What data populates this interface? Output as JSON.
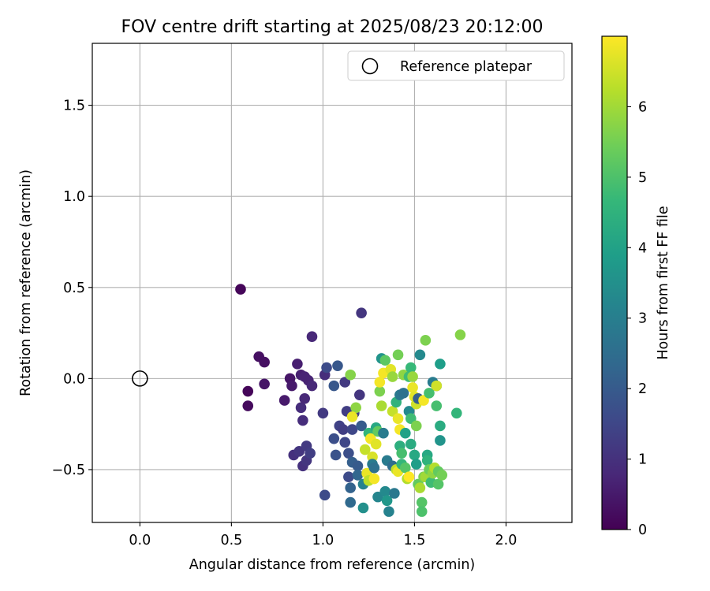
{
  "chart_data": {
    "type": "scatter",
    "title": "FOV centre drift starting at 2025/08/23 20:12:00",
    "xlabel": "Angular distance from reference (arcmin)",
    "ylabel": "Rotation from reference (arcmin)",
    "xlim": [
      -0.26,
      2.36
    ],
    "ylim": [
      -0.79,
      1.84
    ],
    "xticks": [
      0.0,
      0.5,
      1.0,
      1.5,
      2.0
    ],
    "xtick_labels": [
      "0.0",
      "0.5",
      "1.0",
      "1.5",
      "2.0"
    ],
    "yticks": [
      -0.5,
      0.0,
      0.5,
      1.0,
      1.5
    ],
    "ytick_labels": [
      "−0.5",
      "0.0",
      "0.5",
      "1.0",
      "1.5"
    ],
    "grid": true,
    "legend": {
      "placement": "top-right",
      "label": "Reference platepar",
      "marker": "open-circle"
    },
    "reference_point": {
      "x": 0.0,
      "y": 0.0
    },
    "colorbar": {
      "label": "Hours from first FF file",
      "range": [
        0,
        7
      ],
      "ticks": [
        0,
        1,
        2,
        3,
        4,
        5,
        6
      ],
      "tick_labels": [
        "0",
        "1",
        "2",
        "3",
        "4",
        "5",
        "6"
      ],
      "colormap": "viridis"
    },
    "points": [
      {
        "x": 0.55,
        "y": 0.49,
        "h": 0.1
      },
      {
        "x": 0.59,
        "y": -0.07,
        "h": 0.1
      },
      {
        "x": 0.59,
        "y": -0.15,
        "h": 0.2
      },
      {
        "x": 0.65,
        "y": 0.12,
        "h": 0.3
      },
      {
        "x": 0.68,
        "y": 0.09,
        "h": 0.3
      },
      {
        "x": 0.68,
        "y": -0.03,
        "h": 0.4
      },
      {
        "x": 0.79,
        "y": -0.12,
        "h": 0.5
      },
      {
        "x": 0.82,
        "y": 0.0,
        "h": 0.4
      },
      {
        "x": 0.83,
        "y": -0.04,
        "h": 0.5
      },
      {
        "x": 0.86,
        "y": 0.08,
        "h": 0.6
      },
      {
        "x": 0.88,
        "y": 0.02,
        "h": 0.6
      },
      {
        "x": 0.9,
        "y": 0.01,
        "h": 0.7
      },
      {
        "x": 0.92,
        "y": -0.01,
        "h": 0.7
      },
      {
        "x": 0.94,
        "y": -0.04,
        "h": 0.8
      },
      {
        "x": 0.94,
        "y": 0.23,
        "h": 0.8
      },
      {
        "x": 0.88,
        "y": -0.16,
        "h": 0.9
      },
      {
        "x": 0.9,
        "y": -0.11,
        "h": 0.8
      },
      {
        "x": 0.89,
        "y": -0.23,
        "h": 0.9
      },
      {
        "x": 0.84,
        "y": -0.42,
        "h": 1.0
      },
      {
        "x": 0.87,
        "y": -0.4,
        "h": 1.1
      },
      {
        "x": 0.89,
        "y": -0.48,
        "h": 1.0
      },
      {
        "x": 0.91,
        "y": -0.45,
        "h": 1.1
      },
      {
        "x": 0.91,
        "y": -0.37,
        "h": 1.2
      },
      {
        "x": 0.93,
        "y": -0.41,
        "h": 1.3
      },
      {
        "x": 1.0,
        "y": -0.19,
        "h": 1.2
      },
      {
        "x": 1.01,
        "y": 0.02,
        "h": 0.9
      },
      {
        "x": 1.02,
        "y": 0.06,
        "h": 1.6
      },
      {
        "x": 1.01,
        "y": -0.64,
        "h": 1.6
      },
      {
        "x": 1.06,
        "y": -0.04,
        "h": 1.9
      },
      {
        "x": 1.08,
        "y": 0.07,
        "h": 1.9
      },
      {
        "x": 1.06,
        "y": -0.33,
        "h": 1.7
      },
      {
        "x": 1.07,
        "y": -0.42,
        "h": 1.8
      },
      {
        "x": 1.09,
        "y": -0.26,
        "h": 1.4
      },
      {
        "x": 1.11,
        "y": -0.28,
        "h": 1.3
      },
      {
        "x": 1.12,
        "y": -0.35,
        "h": 1.5
      },
      {
        "x": 1.13,
        "y": -0.18,
        "h": 1.3
      },
      {
        "x": 1.12,
        "y": -0.02,
        "h": 1.2
      },
      {
        "x": 1.14,
        "y": -0.41,
        "h": 1.7
      },
      {
        "x": 1.14,
        "y": -0.54,
        "h": 1.6
      },
      {
        "x": 1.15,
        "y": -0.6,
        "h": 2.2
      },
      {
        "x": 1.15,
        "y": -0.68,
        "h": 2.4
      },
      {
        "x": 1.16,
        "y": -0.46,
        "h": 2.1
      },
      {
        "x": 1.16,
        "y": -0.28,
        "h": 1.5
      },
      {
        "x": 1.17,
        "y": -0.19,
        "h": 1.4
      },
      {
        "x": 1.18,
        "y": -0.16,
        "h": 5.8
      },
      {
        "x": 1.15,
        "y": 0.02,
        "h": 5.7
      },
      {
        "x": 1.16,
        "y": -0.21,
        "h": 6.8
      },
      {
        "x": 1.19,
        "y": -0.48,
        "h": 2.0
      },
      {
        "x": 1.19,
        "y": -0.53,
        "h": 2.3
      },
      {
        "x": 1.2,
        "y": -0.09,
        "h": 1.1
      },
      {
        "x": 1.21,
        "y": 0.36,
        "h": 1.1
      },
      {
        "x": 1.21,
        "y": -0.26,
        "h": 2.0
      },
      {
        "x": 1.22,
        "y": -0.58,
        "h": 3.1
      },
      {
        "x": 1.22,
        "y": -0.71,
        "h": 3.5
      },
      {
        "x": 1.23,
        "y": -0.39,
        "h": 6.4
      },
      {
        "x": 1.24,
        "y": -0.52,
        "h": 6.8
      },
      {
        "x": 1.25,
        "y": -0.3,
        "h": 4.6
      },
      {
        "x": 1.25,
        "y": -0.56,
        "h": 6.3
      },
      {
        "x": 1.26,
        "y": -0.33,
        "h": 6.9
      },
      {
        "x": 1.27,
        "y": -0.43,
        "h": 6.6
      },
      {
        "x": 1.27,
        "y": -0.47,
        "h": 2.9
      },
      {
        "x": 1.28,
        "y": -0.49,
        "h": 2.6
      },
      {
        "x": 1.28,
        "y": -0.55,
        "h": 6.9
      },
      {
        "x": 1.29,
        "y": -0.36,
        "h": 6.7
      },
      {
        "x": 1.29,
        "y": -0.27,
        "h": 4.2
      },
      {
        "x": 1.3,
        "y": -0.29,
        "h": 5.3
      },
      {
        "x": 1.3,
        "y": -0.65,
        "h": 3.2
      },
      {
        "x": 1.31,
        "y": -0.07,
        "h": 5.6
      },
      {
        "x": 1.31,
        "y": -0.02,
        "h": 6.9
      },
      {
        "x": 1.32,
        "y": 0.11,
        "h": 3.6
      },
      {
        "x": 1.32,
        "y": -0.15,
        "h": 6.1
      },
      {
        "x": 1.33,
        "y": 0.03,
        "h": 6.9
      },
      {
        "x": 1.33,
        "y": -0.3,
        "h": 2.9
      },
      {
        "x": 1.34,
        "y": 0.1,
        "h": 5.2
      },
      {
        "x": 1.34,
        "y": -0.62,
        "h": 3.3
      },
      {
        "x": 1.35,
        "y": -0.67,
        "h": 3.7
      },
      {
        "x": 1.35,
        "y": -0.45,
        "h": 2.9
      },
      {
        "x": 1.36,
        "y": -0.73,
        "h": 3.1
      },
      {
        "x": 1.37,
        "y": 0.05,
        "h": 6.7
      },
      {
        "x": 1.38,
        "y": -0.18,
        "h": 6.4
      },
      {
        "x": 1.38,
        "y": 0.01,
        "h": 5.9
      },
      {
        "x": 1.38,
        "y": -0.48,
        "h": 2.5
      },
      {
        "x": 1.39,
        "y": -0.63,
        "h": 2.8
      },
      {
        "x": 1.4,
        "y": -0.13,
        "h": 4.5
      },
      {
        "x": 1.4,
        "y": -0.5,
        "h": 6.3
      },
      {
        "x": 1.41,
        "y": -0.51,
        "h": 6.8
      },
      {
        "x": 1.41,
        "y": -0.22,
        "h": 6.8
      },
      {
        "x": 1.41,
        "y": 0.13,
        "h": 5.5
      },
      {
        "x": 1.42,
        "y": -0.09,
        "h": 2.8
      },
      {
        "x": 1.42,
        "y": -0.28,
        "h": 6.9
      },
      {
        "x": 1.42,
        "y": -0.37,
        "h": 4.4
      },
      {
        "x": 1.43,
        "y": -0.47,
        "h": 4.6
      },
      {
        "x": 1.43,
        "y": -0.41,
        "h": 4.9
      },
      {
        "x": 1.44,
        "y": 0.02,
        "h": 5.8
      },
      {
        "x": 1.44,
        "y": -0.08,
        "h": 2.6
      },
      {
        "x": 1.45,
        "y": -0.3,
        "h": 4.0
      },
      {
        "x": 1.45,
        "y": -0.49,
        "h": 5.1
      },
      {
        "x": 1.46,
        "y": -0.55,
        "h": 6.2
      },
      {
        "x": 1.47,
        "y": -0.54,
        "h": 7.0
      },
      {
        "x": 1.47,
        "y": 0.01,
        "h": 4.8
      },
      {
        "x": 1.47,
        "y": -0.18,
        "h": 3.3
      },
      {
        "x": 1.48,
        "y": 0.06,
        "h": 4.7
      },
      {
        "x": 1.48,
        "y": -0.36,
        "h": 4.3
      },
      {
        "x": 1.48,
        "y": -0.22,
        "h": 4.8
      },
      {
        "x": 1.49,
        "y": -0.05,
        "h": 6.8
      },
      {
        "x": 1.49,
        "y": 0.01,
        "h": 5.9
      },
      {
        "x": 1.5,
        "y": -0.1,
        "h": 6.7
      },
      {
        "x": 1.5,
        "y": -0.42,
        "h": 4.2
      },
      {
        "x": 1.51,
        "y": -0.47,
        "h": 3.9
      },
      {
        "x": 1.51,
        "y": -0.14,
        "h": 6.5
      },
      {
        "x": 1.51,
        "y": -0.26,
        "h": 5.6
      },
      {
        "x": 1.52,
        "y": -0.58,
        "h": 5.3
      },
      {
        "x": 1.52,
        "y": -0.11,
        "h": 2.1
      },
      {
        "x": 1.53,
        "y": -0.6,
        "h": 6.1
      },
      {
        "x": 1.53,
        "y": 0.13,
        "h": 3.3
      },
      {
        "x": 1.54,
        "y": -0.68,
        "h": 5.1
      },
      {
        "x": 1.54,
        "y": -0.73,
        "h": 5.0
      },
      {
        "x": 1.55,
        "y": -0.54,
        "h": 5.6
      },
      {
        "x": 1.55,
        "y": -0.12,
        "h": 6.9
      },
      {
        "x": 1.56,
        "y": 0.21,
        "h": 5.6
      },
      {
        "x": 1.56,
        "y": -0.54,
        "h": 6.0
      },
      {
        "x": 1.57,
        "y": -0.42,
        "h": 4.2
      },
      {
        "x": 1.57,
        "y": -0.45,
        "h": 4.5
      },
      {
        "x": 1.58,
        "y": -0.5,
        "h": 5.4
      },
      {
        "x": 1.58,
        "y": -0.08,
        "h": 4.9
      },
      {
        "x": 1.59,
        "y": -0.57,
        "h": 4.8
      },
      {
        "x": 1.6,
        "y": -0.52,
        "h": 5.8
      },
      {
        "x": 1.6,
        "y": -0.02,
        "h": 2.9
      },
      {
        "x": 1.61,
        "y": -0.49,
        "h": 6.2
      },
      {
        "x": 1.62,
        "y": -0.04,
        "h": 3.3
      },
      {
        "x": 1.62,
        "y": -0.04,
        "h": 6.5
      },
      {
        "x": 1.62,
        "y": -0.15,
        "h": 4.9
      },
      {
        "x": 1.63,
        "y": -0.51,
        "h": 5.3
      },
      {
        "x": 1.63,
        "y": -0.58,
        "h": 5.1
      },
      {
        "x": 1.64,
        "y": 0.08,
        "h": 3.9
      },
      {
        "x": 1.64,
        "y": -0.26,
        "h": 4.3
      },
      {
        "x": 1.64,
        "y": -0.34,
        "h": 3.6
      },
      {
        "x": 1.65,
        "y": -0.53,
        "h": 5.5
      },
      {
        "x": 1.73,
        "y": -0.19,
        "h": 4.6
      },
      {
        "x": 1.75,
        "y": 0.24,
        "h": 5.7
      }
    ]
  }
}
